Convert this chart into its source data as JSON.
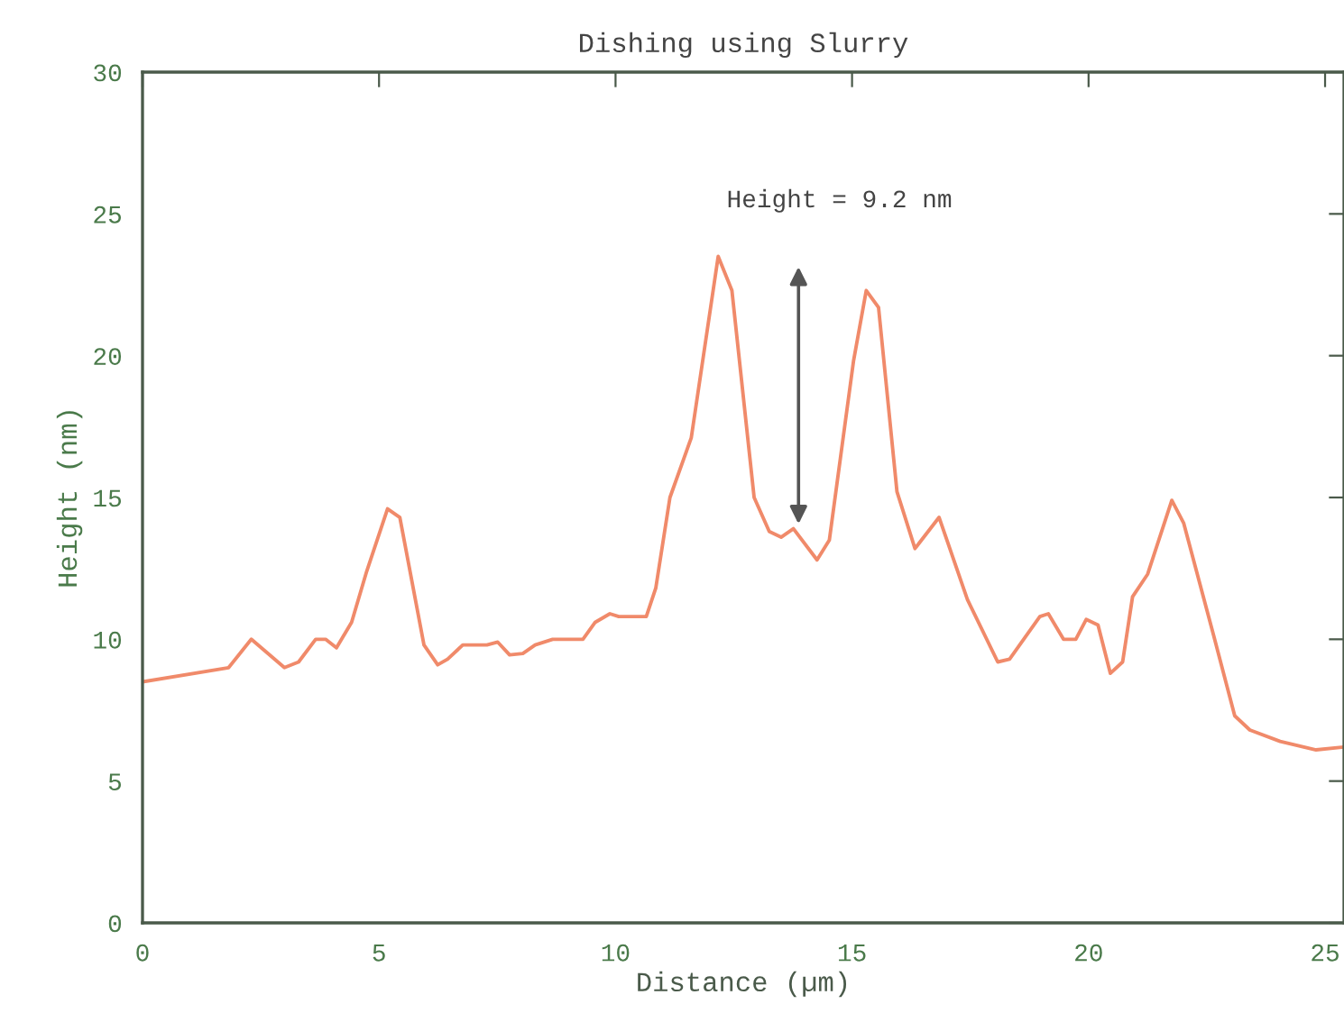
{
  "chart_data": {
    "type": "line",
    "title": "Dishing using Slurry",
    "xlabel": "Distance (µm)",
    "ylabel": "Height (nm)",
    "x": [
      0,
      1.82,
      2.3,
      3.0,
      3.3,
      3.66,
      3.87,
      4.1,
      4.42,
      4.74,
      5.18,
      5.44,
      5.95,
      6.24,
      6.45,
      6.77,
      7.28,
      7.51,
      7.76,
      8.04,
      8.3,
      8.67,
      8.93,
      9.31,
      9.57,
      9.88,
      10.07,
      10.65,
      10.85,
      11.15,
      11.6,
      12.17,
      12.46,
      12.93,
      13.25,
      13.5,
      13.76,
      14.26,
      14.52,
      15.03,
      15.3,
      15.56,
      15.95,
      16.33,
      16.84,
      17.44,
      18.08,
      18.33,
      18.97,
      19.15,
      19.47,
      19.73,
      19.95,
      20.2,
      20.46,
      20.72,
      20.93,
      21.25,
      21.76,
      22.01,
      22.65,
      23.09,
      23.41,
      24.05,
      24.81,
      25.4
    ],
    "series": [
      {
        "color": "#f08a6a",
        "values": [
          8.5,
          9.0,
          10.0,
          9.0,
          9.2,
          10.0,
          10.0,
          9.7,
          10.6,
          12.4,
          14.6,
          14.3,
          9.8,
          9.1,
          9.3,
          9.8,
          9.8,
          9.9,
          9.45,
          9.5,
          9.8,
          10.0,
          10.0,
          10.0,
          10.6,
          10.9,
          10.8,
          10.8,
          11.8,
          15.0,
          17.1,
          23.5,
          22.3,
          15.0,
          13.8,
          13.6,
          13.9,
          12.8,
          13.5,
          19.8,
          22.3,
          21.7,
          15.2,
          13.2,
          14.3,
          11.4,
          9.2,
          9.3,
          10.8,
          10.9,
          10.0,
          10.0,
          10.7,
          10.5,
          8.8,
          9.2,
          11.5,
          12.3,
          14.9,
          14.1,
          10.1,
          7.3,
          6.8,
          6.4,
          6.1,
          6.2
        ]
      }
    ],
    "annotations": [
      "Height = 9.2 nm"
    ],
    "xlim": [
      0,
      25.4
    ],
    "ylim": [
      0,
      30
    ],
    "xticks": [
      0,
      5,
      10,
      15,
      20,
      25
    ],
    "yticks": [
      0,
      5,
      10,
      15,
      20,
      25,
      30
    ],
    "grid": false,
    "legend": false,
    "marker": "none",
    "line_style": "solid"
  }
}
